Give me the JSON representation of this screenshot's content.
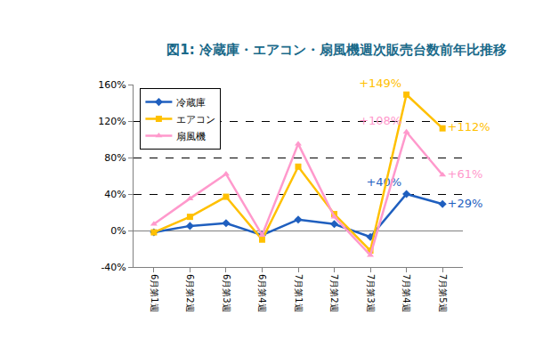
{
  "chart_data": {
    "type": "line",
    "title": "図1: 冷蔵庫・エアコン・扇風機週次販売台数前年比推移",
    "categories": [
      "6月第1週",
      "6月第2週",
      "6月第3週",
      "6月第4週",
      "7月第1週",
      "7月第2週",
      "7月第3週",
      "7月第4週",
      "7月第5週"
    ],
    "series": [
      {
        "name": "冷蔵庫",
        "color": "#1f5fbf",
        "marker": "diamond",
        "values": [
          -2,
          5,
          8,
          -5,
          12,
          7,
          -7,
          40,
          29
        ],
        "value_labels": [
          null,
          null,
          null,
          null,
          null,
          null,
          null,
          "+40%",
          "+29%"
        ]
      },
      {
        "name": "エアコン",
        "color": "#ffc000",
        "marker": "square",
        "values": [
          -2,
          15,
          37,
          -10,
          70,
          18,
          -22,
          149,
          112
        ],
        "value_labels": [
          null,
          null,
          null,
          null,
          null,
          null,
          null,
          "+149%",
          "+112%"
        ]
      },
      {
        "name": "扇風機",
        "color": "#ff99cc",
        "marker": "triangle-up",
        "values": [
          7,
          35,
          62,
          -5,
          95,
          15,
          -27,
          108,
          61
        ],
        "value_labels": [
          null,
          null,
          null,
          null,
          null,
          null,
          null,
          "+108%",
          "+61%"
        ]
      }
    ],
    "ylim": [
      -40,
      160
    ],
    "yticks": [
      {
        "value": -40,
        "label": "-40%"
      },
      {
        "value": 0,
        "label": "0%"
      },
      {
        "value": 40,
        "label": "40%"
      },
      {
        "value": 80,
        "label": "80%"
      },
      {
        "value": 120,
        "label": "120%"
      },
      {
        "value": 160,
        "label": "160%"
      }
    ],
    "grid": true,
    "legend": "top-left",
    "data_labels": true
  }
}
